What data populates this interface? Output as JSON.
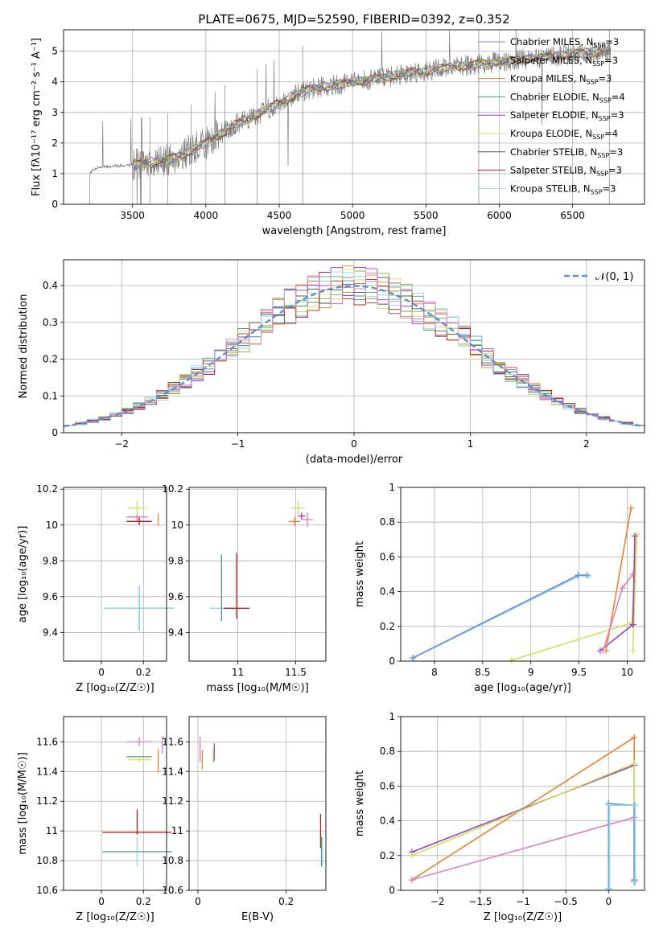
{
  "figure_title": "PLATE=0675, MJD=52590, FIBERID=0392, z=0.352",
  "colors": {
    "spectrum": "#808080",
    "grid": "#b0b0b0",
    "gaussian": "#5b8ed6",
    "models": [
      "#6b8fd6",
      "#7fb51e",
      "#e8802e",
      "#4f9a74",
      "#9b3fbf",
      "#cce05a",
      "#555555",
      "#b52020",
      "#8ed6e6",
      "#e07fbf"
    ]
  },
  "legend": {
    "models": [
      {
        "label": "Chabrier MILES, N",
        "sub": "SSP",
        "tail": "=3",
        "color": "#6b8fd6"
      },
      {
        "label": "Salpeter MILES, N",
        "sub": "SSP",
        "tail": "=3",
        "color": "#7fb51e"
      },
      {
        "label": "Kroupa MILES, N",
        "sub": "SSP",
        "tail": "=3",
        "color": "#e8802e"
      },
      {
        "label": "Chabrier ELODIE, N",
        "sub": "SSP",
        "tail": "=4",
        "color": "#4f9a74"
      },
      {
        "label": "Salpeter ELODIE, N",
        "sub": "SSP",
        "tail": "=3",
        "color": "#9b3fbf"
      },
      {
        "label": "Kroupa ELODIE, N",
        "sub": "SSP",
        "tail": "=4",
        "color": "#cce05a"
      },
      {
        "label": "Chabrier STELIB, N",
        "sub": "SSP",
        "tail": "=3",
        "color": "#555555"
      },
      {
        "label": "Salpeter STELIB, N",
        "sub": "SSP",
        "tail": "=3",
        "color": "#b52020"
      },
      {
        "label": "Kroupa STELIB, N",
        "sub": "SSP",
        "tail": "=3",
        "color": "#8ed6e6"
      }
    ],
    "gaussian": "𝒩(0, 1)"
  },
  "chart_data": [
    {
      "type": "line",
      "id": "spectrum",
      "xlabel": "wavelength [Angstrom, rest frame]",
      "ylabel": "Flux [fλ10⁻¹⁷ erg cm⁻² s⁻¹ A⁻¹]",
      "xlim": [
        3030,
        6990
      ],
      "ylim": [
        0,
        5.7
      ],
      "xticks": [
        3500,
        4000,
        4500,
        5000,
        5500,
        6000,
        6500
      ],
      "yticks": [
        0,
        1,
        2,
        3,
        4,
        5
      ],
      "grid": true,
      "legend_position": "right",
      "continuum": [
        [
          3210,
          1.05
        ],
        [
          3260,
          1.2
        ],
        [
          3400,
          1.25
        ],
        [
          3500,
          1.3
        ],
        [
          3600,
          1.35
        ],
        [
          3700,
          1.4
        ],
        [
          3800,
          1.55
        ],
        [
          3900,
          1.75
        ],
        [
          4000,
          2.0
        ],
        [
          4100,
          2.3
        ],
        [
          4200,
          2.6
        ],
        [
          4300,
          2.8
        ],
        [
          4400,
          3.05
        ],
        [
          4500,
          3.3
        ],
        [
          4600,
          3.55
        ],
        [
          4700,
          3.75
        ],
        [
          4800,
          3.85
        ],
        [
          4900,
          3.9
        ],
        [
          5000,
          4.0
        ],
        [
          5100,
          4.05
        ],
        [
          5200,
          4.15
        ],
        [
          5300,
          4.2
        ],
        [
          5400,
          4.3
        ],
        [
          5500,
          4.35
        ],
        [
          5600,
          4.45
        ],
        [
          5700,
          4.5
        ],
        [
          5800,
          4.55
        ],
        [
          5900,
          4.6
        ],
        [
          6000,
          4.65
        ],
        [
          6100,
          4.7
        ],
        [
          6200,
          4.75
        ],
        [
          6300,
          4.8
        ],
        [
          6400,
          4.85
        ],
        [
          6500,
          4.9
        ],
        [
          6600,
          4.95
        ],
        [
          6700,
          5.0
        ],
        [
          6760,
          5.0
        ]
      ]
    },
    {
      "type": "step",
      "id": "residuals",
      "xlabel": "(data-model)/error",
      "ylabel": "Normed distribution",
      "xlim": [
        -2.5,
        2.5
      ],
      "ylim": [
        0,
        0.47
      ],
      "xticks": [
        -2,
        -1,
        0,
        1,
        2
      ],
      "yticks": [
        0.0,
        0.1,
        0.2,
        0.3,
        0.4
      ],
      "grid": true,
      "legend_position": "top-right",
      "bin_width": 0.1,
      "gaussian": {
        "mu": 0,
        "sigma": 1
      }
    },
    {
      "type": "errorbar",
      "id": "z-vs-age",
      "xlabel": "Z [log₁₀(Z/Z☉)]",
      "ylabel": "age  [log₁₀(age/yr)]",
      "xlim": [
        -0.18,
        0.31
      ],
      "ylim": [
        9.24,
        10.21
      ],
      "xticks": [
        0.0,
        0.2
      ],
      "yticks": [
        9.4,
        9.6,
        9.8,
        10.0,
        10.2
      ],
      "grid": true,
      "points": [
        {
          "x": 0.18,
          "xe": 0.33,
          "y": 9.535,
          "ye": 0.25,
          "color": "#4f9a74"
        },
        {
          "x": 0.18,
          "xe": 0.33,
          "y": 9.535,
          "ye": 0.25,
          "color": "#8ed6e6"
        },
        {
          "x": 0.18,
          "xe": 0.12,
          "y": 10.02,
          "ye": 0.04,
          "color": "#e8802e"
        },
        {
          "x": 0.18,
          "xe": 0.12,
          "y": 10.02,
          "ye": 0.04,
          "color": "#b52020"
        },
        {
          "x": 0.17,
          "xe": 0.1,
          "y": 10.045,
          "ye": 0.04,
          "color": "#9b3fbf"
        },
        {
          "x": 0.17,
          "xe": 0.1,
          "y": 10.045,
          "ye": 0.04,
          "color": "#e07fbf"
        },
        {
          "x": 0.17,
          "xe": 0.09,
          "y": 10.095,
          "ye": 0.08,
          "color": "#cce05a"
        },
        {
          "x": 0.27,
          "xe": 0.0,
          "y": 10.03,
          "ye": 0.07,
          "color": "#e8802e"
        }
      ]
    },
    {
      "type": "errorbar",
      "id": "mass-vs-age",
      "xlabel": "mass [log₁₀(M/M☉)]",
      "ylabel": "",
      "xlim": [
        10.58,
        11.76
      ],
      "ylim": [
        9.24,
        10.21
      ],
      "xticks": [
        11.0,
        11.5
      ],
      "yticks": [
        9.4,
        9.6,
        9.8,
        10.0,
        10.2
      ],
      "grid": true,
      "points": [
        {
          "x": 10.86,
          "xe": 0.2,
          "y": 9.535,
          "ye": 0.0,
          "color": "#8ed6e6"
        },
        {
          "x": 10.86,
          "xe": 0.0,
          "y": 9.65,
          "ye": 0.37,
          "color": "#4f9a74"
        },
        {
          "x": 10.99,
          "xe": 0.22,
          "y": 9.535,
          "ye": 0.0,
          "color": "#b52020"
        },
        {
          "x": 10.99,
          "xe": 0.0,
          "y": 9.66,
          "ye": 0.37,
          "color": "#b52020"
        },
        {
          "x": 11.49,
          "xe": 0.1,
          "y": 10.02,
          "ye": 0.05,
          "color": "#e8802e"
        },
        {
          "x": 11.55,
          "xe": 0.06,
          "y": 10.05,
          "ye": 0.04,
          "color": "#9b3fbf"
        },
        {
          "x": 11.6,
          "xe": 0.1,
          "y": 10.03,
          "ye": 0.08,
          "color": "#e07fbf"
        },
        {
          "x": 11.52,
          "xe": 0.12,
          "y": 10.095,
          "ye": 0.08,
          "color": "#cce05a"
        }
      ]
    },
    {
      "type": "line",
      "id": "age-vs-mass-weight",
      "xlabel": "age  [log₁₀(age/yr)]",
      "ylabel": "mass weight",
      "xlim": [
        7.65,
        10.18
      ],
      "ylim": [
        0.0,
        1.0
      ],
      "xticks": [
        8.0,
        8.5,
        9.0,
        9.5,
        10.0
      ],
      "yticks": [
        0.0,
        0.2,
        0.4,
        0.6,
        0.8,
        1.0
      ],
      "grid": true,
      "series": [
        {
          "color": "#8ed6e6",
          "x": [
            7.77,
            9.5,
            9.6
          ],
          "y": [
            0.015,
            0.49,
            0.49
          ]
        },
        {
          "color": "#6b8fd6",
          "x": [
            7.78,
            9.49,
            9.58
          ],
          "y": [
            0.02,
            0.495,
            0.495
          ]
        },
        {
          "color": "#cce05a",
          "x": [
            8.8,
            10.05,
            10.1,
            10.06
          ],
          "y": [
            0.005,
            0.22,
            0.73,
            0.06
          ]
        },
        {
          "color": "#9b3fbf",
          "x": [
            9.72,
            10.06,
            10.08
          ],
          "y": [
            0.06,
            0.21,
            0.72
          ]
        },
        {
          "color": "#e8802e",
          "x": [
            9.78,
            10.04
          ],
          "y": [
            0.06,
            0.88
          ]
        },
        {
          "color": "#e07fbf",
          "x": [
            9.75,
            9.95,
            10.06
          ],
          "y": [
            0.06,
            0.42,
            0.5
          ]
        }
      ]
    },
    {
      "type": "errorbar",
      "id": "z-vs-mass",
      "xlabel": "Z [log₁₀(Z/Z☉)]",
      "ylabel": "mass [log₁₀(M/M☉)]",
      "xlim": [
        -0.18,
        0.31
      ],
      "ylim": [
        10.6,
        11.77
      ],
      "xticks": [
        0.0,
        0.2
      ],
      "yticks": [
        10.6,
        10.8,
        11.0,
        11.2,
        11.4,
        11.6
      ],
      "grid": true,
      "points": [
        {
          "x": 0.17,
          "xe": 0.33,
          "y": 10.86,
          "ye": 0.0,
          "color": "#4f9a74"
        },
        {
          "x": 0.17,
          "xe": 0.0,
          "y": 10.86,
          "ye": 0.2,
          "color": "#8ed6e6"
        },
        {
          "x": 0.17,
          "xe": 0.33,
          "y": 10.99,
          "ye": 0.0,
          "color": "#b52020"
        },
        {
          "x": 0.17,
          "xe": 0.0,
          "y": 11.06,
          "ye": 0.17,
          "color": "#b52020"
        },
        {
          "x": 0.18,
          "xe": 0.12,
          "y": 11.5,
          "ye": 0.0,
          "color": "#4f9a74"
        },
        {
          "x": 0.18,
          "xe": 0.11,
          "y": 11.48,
          "ye": 0.04,
          "color": "#cce05a"
        },
        {
          "x": 0.18,
          "xe": 0.12,
          "y": 11.6,
          "ye": 0.06,
          "color": "#e07fbf"
        },
        {
          "x": 0.27,
          "xe": 0.0,
          "y": 11.47,
          "ye": 0.16,
          "color": "#e8802e"
        },
        {
          "x": 0.29,
          "xe": 0.0,
          "y": 11.58,
          "ye": 0.12,
          "color": "#e07fbf"
        }
      ]
    },
    {
      "type": "errorbar",
      "id": "ebv-vs-mass",
      "xlabel": "E(B-V)",
      "ylabel": "",
      "xlim": [
        -0.02,
        0.29
      ],
      "ylim": [
        10.6,
        11.77
      ],
      "xticks": [
        0.0,
        0.2
      ],
      "yticks": [
        10.6,
        10.8,
        11.0,
        11.2,
        11.4,
        11.6
      ],
      "grid": true,
      "points": [
        {
          "x": 0.005,
          "xe": 0.0,
          "y": 11.55,
          "ye": 0.17,
          "color": "#e07fbf"
        },
        {
          "x": 0.01,
          "xe": 0.0,
          "y": 11.48,
          "ye": 0.13,
          "color": "#e8802e"
        },
        {
          "x": 0.035,
          "xe": 0.0,
          "y": 11.5,
          "ye": 0.09,
          "color": "#cce05a"
        },
        {
          "x": 0.037,
          "xe": 0.0,
          "y": 11.53,
          "ye": 0.12,
          "color": "#9b3fbf"
        },
        {
          "x": 0.278,
          "xe": 0.0,
          "y": 11.0,
          "ye": 0.23,
          "color": "#b52020"
        },
        {
          "x": 0.28,
          "xe": 0.0,
          "y": 10.86,
          "ye": 0.2,
          "color": "#4f9a74"
        },
        {
          "x": 0.282,
          "xe": 0.0,
          "y": 10.86,
          "ye": 0.2,
          "color": "#8ed6e6"
        }
      ]
    },
    {
      "type": "line",
      "id": "z-vs-mass-weight",
      "xlabel": "Z [log₁₀(Z/Z☉)]",
      "ylabel": "mass weight",
      "xlim": [
        -2.43,
        0.42
      ],
      "ylim": [
        0.0,
        1.0
      ],
      "xticks": [
        -2.0,
        -1.5,
        -1.0,
        -0.5,
        0.0
      ],
      "yticks": [
        0.0,
        0.2,
        0.4,
        0.6,
        0.8,
        1.0
      ],
      "grid": true,
      "series": [
        {
          "color": "#e8802e",
          "x": [
            -2.3,
            0.3,
            0.3
          ],
          "y": [
            0.06,
            0.88,
            0.06
          ]
        },
        {
          "color": "#9b3fbf",
          "x": [
            -2.3,
            0.3,
            0.3
          ],
          "y": [
            0.22,
            0.72,
            0.06
          ]
        },
        {
          "color": "#cce05a",
          "x": [
            -2.3,
            0.3,
            0.3
          ],
          "y": [
            0.2,
            0.73,
            0.05
          ]
        },
        {
          "color": "#e07fbf",
          "x": [
            -2.3,
            0.3
          ],
          "y": [
            0.06,
            0.42
          ]
        },
        {
          "color": "#6b8fd6",
          "x": [
            0.0,
            0.0,
            0.3,
            0.3
          ],
          "y": [
            0.01,
            0.5,
            0.49,
            0.05
          ]
        },
        {
          "color": "#8ed6e6",
          "x": [
            0.01,
            0.01,
            0.31,
            0.31
          ],
          "y": [
            0.01,
            0.49,
            0.49,
            0.05
          ]
        }
      ]
    }
  ]
}
